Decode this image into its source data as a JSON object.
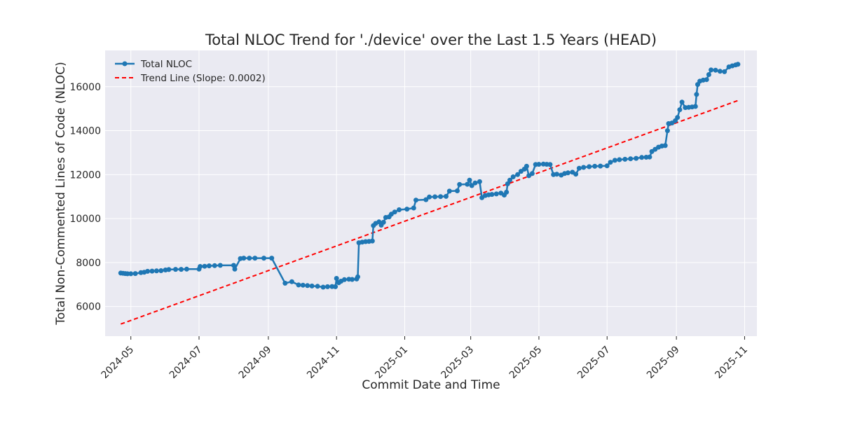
{
  "chart_data": {
    "type": "line",
    "title": "Total NLOC Trend for './device' over the Last 1.5 Years (HEAD)",
    "xlabel": "Commit Date and Time",
    "ylabel": "Total Non-Commented Lines of Code (NLOC)",
    "x_type": "date",
    "xlim": [
      "2024-04-08",
      "2025-11-12"
    ],
    "ylim": [
      4650,
      17650
    ],
    "x_ticks": [
      "2024-05-01",
      "2024-07-01",
      "2024-09-01",
      "2024-11-01",
      "2025-01-01",
      "2025-03-01",
      "2025-05-01",
      "2025-07-01",
      "2025-09-01",
      "2025-11-01"
    ],
    "x_tick_labels": [
      "2024-05",
      "2024-07",
      "2024-09",
      "2024-11",
      "2025-01",
      "2025-03",
      "2025-05",
      "2025-07",
      "2025-09",
      "2025-11"
    ],
    "y_ticks": [
      6000,
      8000,
      10000,
      12000,
      14000,
      16000
    ],
    "y_tick_labels": [
      "6000",
      "8000",
      "10000",
      "12000",
      "14000",
      "16000"
    ],
    "grid": true,
    "legend_position": "top-left",
    "colors": {
      "series": "#1f77b4",
      "trend": "#ff0000",
      "plot_bg": "#eaeaf2",
      "grid": "#ffffff"
    },
    "series": [
      {
        "name": "Total NLOC",
        "style": "line-markers",
        "points": [
          [
            "2024-04-22",
            7520
          ],
          [
            "2024-04-24",
            7510
          ],
          [
            "2024-04-26",
            7500
          ],
          [
            "2024-04-28",
            7490
          ],
          [
            "2024-05-01",
            7490
          ],
          [
            "2024-05-05",
            7500
          ],
          [
            "2024-05-10",
            7540
          ],
          [
            "2024-05-13",
            7560
          ],
          [
            "2024-05-16",
            7600
          ],
          [
            "2024-05-20",
            7610
          ],
          [
            "2024-05-24",
            7620
          ],
          [
            "2024-05-28",
            7630
          ],
          [
            "2024-06-01",
            7660
          ],
          [
            "2024-06-04",
            7680
          ],
          [
            "2024-06-10",
            7690
          ],
          [
            "2024-06-15",
            7690
          ],
          [
            "2024-06-20",
            7700
          ],
          [
            "2024-07-01",
            7700
          ],
          [
            "2024-07-02",
            7820
          ],
          [
            "2024-07-06",
            7830
          ],
          [
            "2024-07-10",
            7850
          ],
          [
            "2024-07-15",
            7860
          ],
          [
            "2024-07-20",
            7870
          ],
          [
            "2024-08-01",
            7870
          ],
          [
            "2024-08-02",
            7700
          ],
          [
            "2024-08-07",
            8180
          ],
          [
            "2024-08-10",
            8200
          ],
          [
            "2024-08-15",
            8200
          ],
          [
            "2024-08-20",
            8200
          ],
          [
            "2024-08-28",
            8200
          ],
          [
            "2024-09-04",
            8200
          ],
          [
            "2024-09-16",
            7060
          ],
          [
            "2024-09-22",
            7130
          ],
          [
            "2024-09-28",
            6980
          ],
          [
            "2024-10-02",
            6970
          ],
          [
            "2024-10-06",
            6950
          ],
          [
            "2024-10-10",
            6930
          ],
          [
            "2024-10-15",
            6920
          ],
          [
            "2024-10-20",
            6880
          ],
          [
            "2024-10-24",
            6900
          ],
          [
            "2024-10-28",
            6910
          ],
          [
            "2024-10-31",
            6900
          ],
          [
            "2024-11-01",
            7280
          ],
          [
            "2024-11-03",
            7080
          ],
          [
            "2024-11-05",
            7150
          ],
          [
            "2024-11-08",
            7220
          ],
          [
            "2024-11-12",
            7240
          ],
          [
            "2024-11-15",
            7230
          ],
          [
            "2024-11-19",
            7250
          ],
          [
            "2024-11-20",
            7350
          ],
          [
            "2024-11-21",
            8900
          ],
          [
            "2024-11-24",
            8930
          ],
          [
            "2024-11-27",
            8950
          ],
          [
            "2024-11-30",
            8960
          ],
          [
            "2024-12-03",
            8980
          ],
          [
            "2024-12-04",
            9680
          ],
          [
            "2024-12-06",
            9780
          ],
          [
            "2024-12-09",
            9850
          ],
          [
            "2024-12-11",
            9700
          ],
          [
            "2024-12-13",
            9830
          ],
          [
            "2024-12-15",
            10050
          ],
          [
            "2024-12-18",
            10080
          ],
          [
            "2024-12-20",
            10200
          ],
          [
            "2024-12-23",
            10300
          ],
          [
            "2024-12-27",
            10400
          ],
          [
            "2025-01-03",
            10430
          ],
          [
            "2025-01-09",
            10480
          ],
          [
            "2025-01-11",
            10840
          ],
          [
            "2025-01-20",
            10860
          ],
          [
            "2025-01-23",
            10980
          ],
          [
            "2025-01-28",
            10990
          ],
          [
            "2025-02-02",
            11000
          ],
          [
            "2025-02-07",
            11010
          ],
          [
            "2025-02-10",
            11250
          ],
          [
            "2025-02-17",
            11260
          ],
          [
            "2025-02-19",
            11550
          ],
          [
            "2025-02-26",
            11560
          ],
          [
            "2025-02-28",
            11750
          ],
          [
            "2025-03-02",
            11500
          ],
          [
            "2025-03-05",
            11620
          ],
          [
            "2025-03-09",
            11680
          ],
          [
            "2025-03-11",
            10950
          ],
          [
            "2025-03-14",
            11050
          ],
          [
            "2025-03-17",
            11080
          ],
          [
            "2025-03-20",
            11100
          ],
          [
            "2025-03-24",
            11120
          ],
          [
            "2025-03-28",
            11160
          ],
          [
            "2025-03-31",
            11070
          ],
          [
            "2025-04-02",
            11200
          ],
          [
            "2025-04-03",
            11580
          ],
          [
            "2025-04-05",
            11750
          ],
          [
            "2025-04-08",
            11900
          ],
          [
            "2025-04-12",
            12000
          ],
          [
            "2025-04-15",
            12150
          ],
          [
            "2025-04-18",
            12250
          ],
          [
            "2025-04-20",
            12380
          ],
          [
            "2025-04-22",
            11950
          ],
          [
            "2025-04-25",
            12050
          ],
          [
            "2025-04-28",
            12460
          ],
          [
            "2025-05-01",
            12470
          ],
          [
            "2025-05-05",
            12480
          ],
          [
            "2025-05-08",
            12470
          ],
          [
            "2025-05-11",
            12460
          ],
          [
            "2025-05-14",
            12000
          ],
          [
            "2025-05-17",
            12020
          ],
          [
            "2025-05-21",
            11980
          ],
          [
            "2025-05-24",
            12050
          ],
          [
            "2025-05-27",
            12080
          ],
          [
            "2025-05-31",
            12110
          ],
          [
            "2025-06-03",
            12020
          ],
          [
            "2025-06-06",
            12290
          ],
          [
            "2025-06-10",
            12330
          ],
          [
            "2025-06-15",
            12360
          ],
          [
            "2025-06-20",
            12380
          ],
          [
            "2025-06-25",
            12390
          ],
          [
            "2025-07-01",
            12400
          ],
          [
            "2025-07-04",
            12560
          ],
          [
            "2025-07-08",
            12650
          ],
          [
            "2025-07-12",
            12680
          ],
          [
            "2025-07-17",
            12700
          ],
          [
            "2025-07-22",
            12720
          ],
          [
            "2025-07-27",
            12740
          ],
          [
            "2025-08-01",
            12780
          ],
          [
            "2025-08-05",
            12790
          ],
          [
            "2025-08-08",
            12800
          ],
          [
            "2025-08-10",
            13050
          ],
          [
            "2025-08-13",
            13150
          ],
          [
            "2025-08-16",
            13250
          ],
          [
            "2025-08-19",
            13300
          ],
          [
            "2025-08-22",
            13320
          ],
          [
            "2025-08-24",
            14000
          ],
          [
            "2025-08-25",
            14320
          ],
          [
            "2025-08-28",
            14350
          ],
          [
            "2025-08-31",
            14450
          ],
          [
            "2025-09-02",
            14600
          ],
          [
            "2025-09-04",
            14950
          ],
          [
            "2025-09-06",
            15300
          ],
          [
            "2025-09-09",
            15050
          ],
          [
            "2025-09-12",
            15060
          ],
          [
            "2025-09-15",
            15080
          ],
          [
            "2025-09-18",
            15100
          ],
          [
            "2025-09-19",
            15650
          ],
          [
            "2025-09-20",
            16100
          ],
          [
            "2025-09-22",
            16250
          ],
          [
            "2025-09-25",
            16300
          ],
          [
            "2025-09-28",
            16320
          ],
          [
            "2025-09-30",
            16550
          ],
          [
            "2025-10-02",
            16760
          ],
          [
            "2025-10-06",
            16750
          ],
          [
            "2025-10-10",
            16700
          ],
          [
            "2025-10-14",
            16680
          ],
          [
            "2025-10-18",
            16900
          ],
          [
            "2025-10-21",
            16950
          ],
          [
            "2025-10-24",
            16990
          ],
          [
            "2025-10-26",
            17020
          ]
        ]
      },
      {
        "name": "Trend Line (Slope: 0.0002)",
        "style": "dashed",
        "points": [
          [
            "2024-04-22",
            5200
          ],
          [
            "2025-10-26",
            15370
          ]
        ]
      }
    ]
  }
}
